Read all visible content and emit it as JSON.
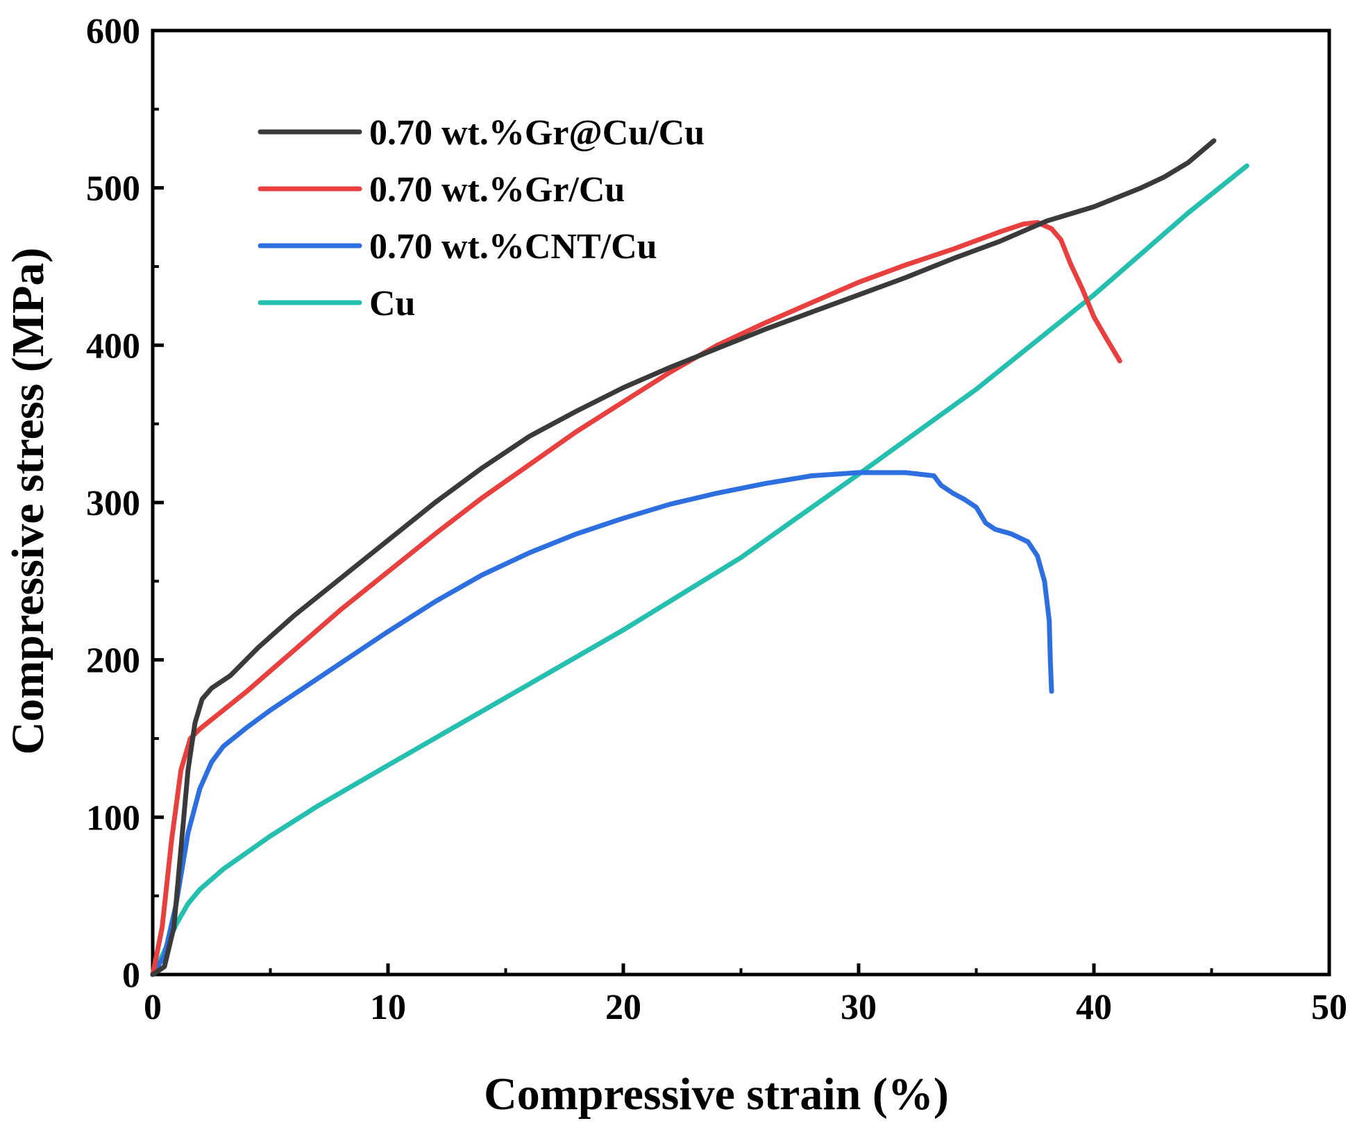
{
  "chart_data": {
    "type": "line",
    "title": "",
    "xlabel": "Compressive strain (%)",
    "ylabel": "Compressive stress (MPa)",
    "xlim": [
      0,
      50
    ],
    "ylim": [
      0,
      600
    ],
    "xticks": [
      0,
      10,
      20,
      30,
      40,
      50
    ],
    "yticks": [
      0,
      100,
      200,
      300,
      400,
      500,
      600
    ],
    "x_minor_step": 5,
    "y_minor_step": 50,
    "grid": false,
    "legend_position": "top-left",
    "series": [
      {
        "name": "0.70 wt.%Gr@Cu/Cu",
        "color": "#3a3a3a",
        "points": [
          [
            0,
            0
          ],
          [
            0.5,
            5
          ],
          [
            0.9,
            30
          ],
          [
            1.2,
            80
          ],
          [
            1.5,
            130
          ],
          [
            1.8,
            160
          ],
          [
            2.1,
            175
          ],
          [
            2.5,
            182
          ],
          [
            3.3,
            190
          ],
          [
            4.5,
            208
          ],
          [
            6,
            228
          ],
          [
            8,
            252
          ],
          [
            10,
            276
          ],
          [
            12,
            300
          ],
          [
            14,
            322
          ],
          [
            16,
            342
          ],
          [
            18,
            358
          ],
          [
            20,
            373
          ],
          [
            22,
            386
          ],
          [
            24,
            398
          ],
          [
            26,
            410
          ],
          [
            28,
            421
          ],
          [
            30,
            432
          ],
          [
            32,
            443
          ],
          [
            34,
            455
          ],
          [
            36,
            466
          ],
          [
            38,
            479
          ],
          [
            40,
            488
          ],
          [
            42,
            500
          ],
          [
            43,
            507
          ],
          [
            44,
            516
          ],
          [
            45.1,
            530
          ]
        ]
      },
      {
        "name": "0.70 wt.%Gr/Cu",
        "color": "#e8403e",
        "points": [
          [
            0,
            0
          ],
          [
            0.4,
            30
          ],
          [
            0.8,
            85
          ],
          [
            1.2,
            130
          ],
          [
            1.6,
            150
          ],
          [
            2,
            156
          ],
          [
            3,
            168
          ],
          [
            4,
            180
          ],
          [
            6,
            206
          ],
          [
            8,
            232
          ],
          [
            10,
            256
          ],
          [
            12,
            280
          ],
          [
            14,
            303
          ],
          [
            16,
            324
          ],
          [
            18,
            345
          ],
          [
            20,
            364
          ],
          [
            22,
            383
          ],
          [
            24,
            400
          ],
          [
            26,
            414
          ],
          [
            28,
            427
          ],
          [
            30,
            440
          ],
          [
            32,
            451
          ],
          [
            34,
            461
          ],
          [
            36,
            472
          ],
          [
            37,
            477
          ],
          [
            37.6,
            478
          ],
          [
            38.2,
            474
          ],
          [
            38.6,
            467
          ],
          [
            39,
            452
          ],
          [
            39.5,
            436
          ],
          [
            40,
            418
          ],
          [
            40.5,
            405
          ],
          [
            41.1,
            390
          ]
        ]
      },
      {
        "name": "0.70 wt.%CNT/Cu",
        "color": "#2e6fe0",
        "points": [
          [
            0,
            0
          ],
          [
            0.5,
            12
          ],
          [
            1,
            45
          ],
          [
            1.5,
            90
          ],
          [
            2,
            118
          ],
          [
            2.5,
            135
          ],
          [
            3,
            145
          ],
          [
            4,
            157
          ],
          [
            5,
            168
          ],
          [
            6,
            178
          ],
          [
            8,
            198
          ],
          [
            10,
            218
          ],
          [
            12,
            237
          ],
          [
            14,
            254
          ],
          [
            16,
            268
          ],
          [
            18,
            280
          ],
          [
            20,
            290
          ],
          [
            22,
            299
          ],
          [
            24,
            306
          ],
          [
            26,
            312
          ],
          [
            28,
            317
          ],
          [
            30,
            319
          ],
          [
            32,
            319
          ],
          [
            33.2,
            317
          ],
          [
            33.5,
            311
          ],
          [
            34,
            306
          ],
          [
            34.5,
            302
          ],
          [
            35,
            297
          ],
          [
            35.4,
            287
          ],
          [
            35.8,
            283
          ],
          [
            36.5,
            280
          ],
          [
            37.2,
            275
          ],
          [
            37.6,
            266
          ],
          [
            37.9,
            250
          ],
          [
            38.1,
            225
          ],
          [
            38.15,
            198
          ],
          [
            38.2,
            180
          ]
        ]
      },
      {
        "name": "Cu",
        "color": "#25bfb0",
        "points": [
          [
            0,
            0
          ],
          [
            0.5,
            15
          ],
          [
            1,
            32
          ],
          [
            1.5,
            45
          ],
          [
            2,
            54
          ],
          [
            3,
            67
          ],
          [
            5,
            88
          ],
          [
            7,
            107
          ],
          [
            10,
            133
          ],
          [
            15,
            176
          ],
          [
            20,
            219
          ],
          [
            25,
            265
          ],
          [
            30,
            318
          ],
          [
            35,
            372
          ],
          [
            40,
            432
          ],
          [
            44,
            484
          ],
          [
            46.5,
            514
          ]
        ]
      }
    ]
  }
}
